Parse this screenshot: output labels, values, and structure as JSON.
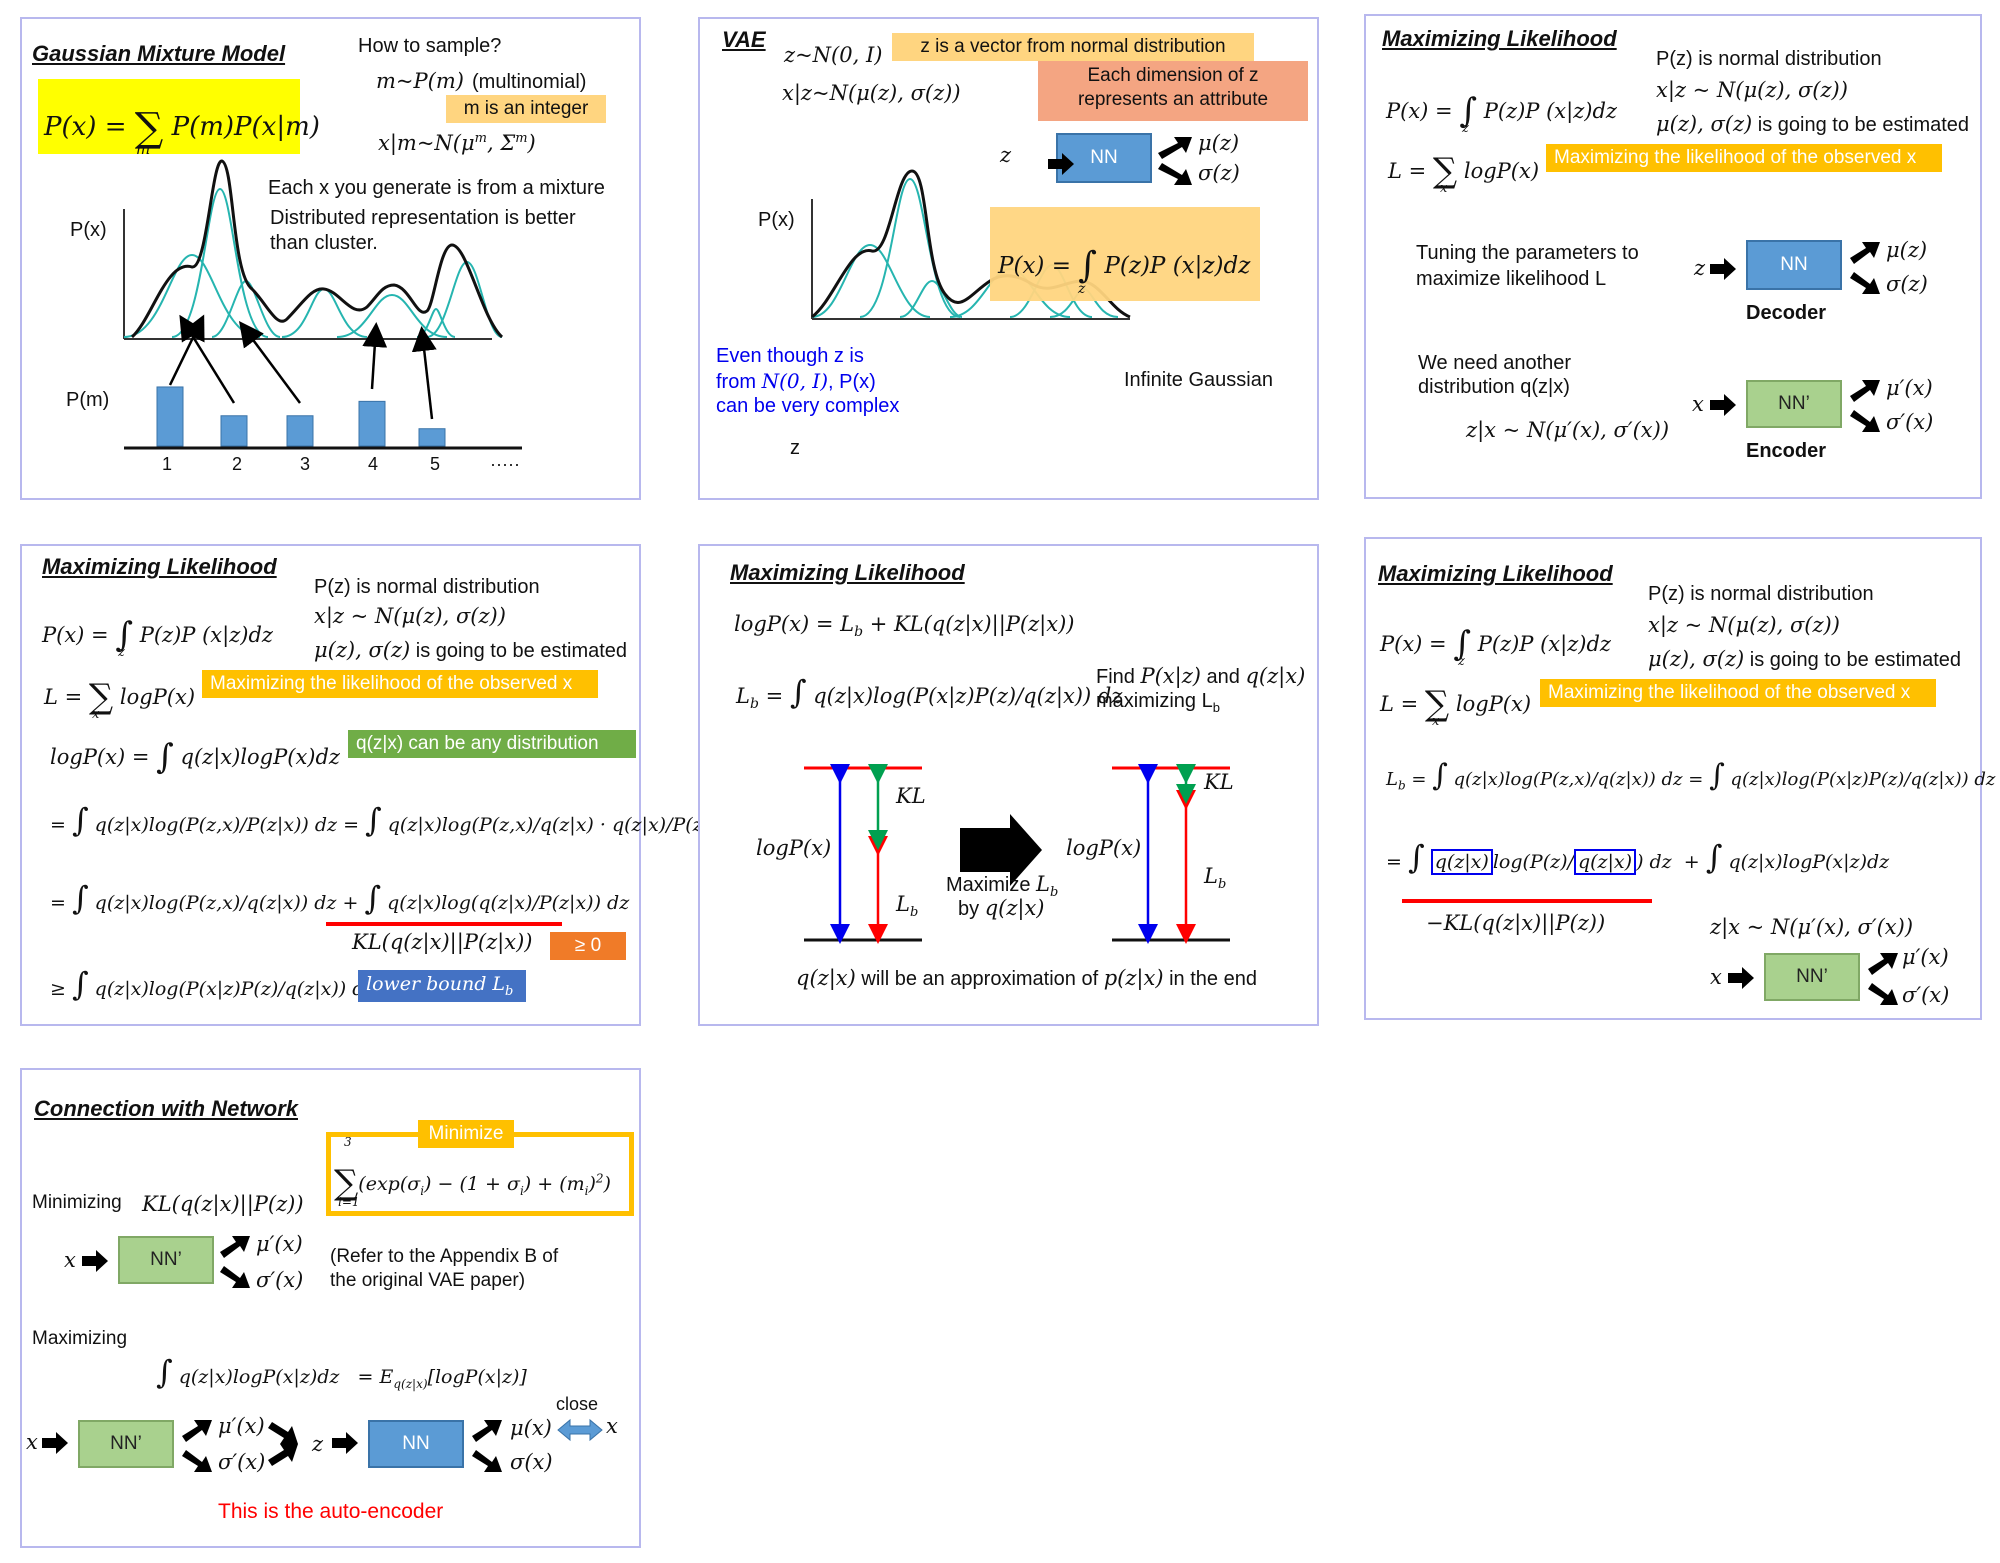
{
  "s1": {
    "title": "Gaussian Mixture Model",
    "how": "How to sample?",
    "m_sample": "m~P(m)",
    "multinomial": "(multinomial)",
    "m_integer": "m is an integer",
    "x_sample": "x|m~N(μ^m, Σ^m)",
    "px_formula": "P(x) = Σ_m P(m)P(x|m)",
    "note1": "Each x you generate is from a mixture",
    "note2": "Distributed representation is better",
    "note3": "than cluster.",
    "px": "P(x)",
    "pm": "P(m)",
    "ticks": [
      "1",
      "2",
      "3",
      "4",
      "5",
      "·····"
    ],
    "pm_values": [
      0.82,
      0.42,
      0.42,
      0.62,
      0.24
    ]
  },
  "s2": {
    "title": "VAE",
    "z_dist": "z~N(0, I)",
    "z_note": "z is a vector from normal distribution",
    "x_dist": "x|z~N(μ(z), σ(z))",
    "dim_note1": "Each dimension of z",
    "dim_note2": "represents an attribute",
    "z": "z",
    "nn": "NN",
    "mu": "μ(z)",
    "sigma": "σ(z)",
    "px": "P(x)",
    "px_formula": "P(x) = ∫_z P(z)P(x|z)dz",
    "even1": "Even though z is",
    "even2": "from N(0, I), P(x)",
    "even3": "can be very complex",
    "infinite": "Infinite Gaussian",
    "zaxis": "z"
  },
  "s3": {
    "title": "Maximizing Likelihood",
    "px_formula": "P(x) = ∫_z P(z)P(x|z)dz",
    "pz_normal": "P(z) is normal distribution",
    "xz": "x|z ~ N(μ(z), σ(z))",
    "est": "μ(z), σ(z) is going to be estimated",
    "L_formula": "L = Σ_x logP(x)",
    "max_note": "Maximizing the likelihood of the observed x",
    "tuning1": "Tuning the parameters to",
    "tuning2": "maximize likelihood L",
    "z": "z",
    "nn": "NN",
    "mu": "μ(z)",
    "sigma": "σ(z)",
    "decoder": "Decoder",
    "need1": "We need another",
    "need2": "distribution q(z|x)",
    "zx": "z|x ~ N(μ′(x), σ′(x))",
    "x": "x",
    "nnp": "NN’",
    "mup": "μ′(x)",
    "sigmap": "σ′(x)",
    "encoder": "Encoder"
  },
  "s4": {
    "title": "Maximizing Likelihood",
    "pz_normal": "P(z) is normal distribution",
    "xz": "x|z ~ N(μ(z), σ(z))",
    "est": "μ(z), σ(z) is going to be estimated",
    "px_formula": "P(x) = ∫_z P(z)P(x|z)dz",
    "L_formula": "L = Σ_x logP(x)",
    "max_note": "Maximizing the likelihood of the observed x",
    "logpx": "logP(x) = ∫_z q(z|x)logP(x)dz",
    "q_any": "q(z|x) can be any distribution",
    "eq1": "= ∫_z q(z|x)log(P(z,x)/P(z|x)) dz = ∫_z q(z|x)log(P(z,x)/q(z|x) · q(z|x)/P(z|x)) dz",
    "eq2": "= ∫_z q(z|x)log(P(z,x)/q(z|x)) dz + ∫_z q(z|x)log(q(z|x)/P(z|x)) dz",
    "kl": "KL(q(z|x)||P(z|x))",
    "ge0": "≥ 0",
    "eq3": "≥ ∫_z q(z|x)log(P(x|z)P(z)/q(z|x)) dz",
    "lower": "lower bound L_b"
  },
  "s5": {
    "title": "Maximizing Likelihood",
    "eq1": "logP(x) = L_b + KL(q(z|x)||P(z|x))",
    "eq2": "L_b = ∫_z q(z|x)log(P(x|z)P(z)/q(z|x)) dz",
    "find1": "Find P(x|z) and q(z|x)",
    "find2": "maximizing L_b",
    "kl": "KL",
    "logpx": "logP(x)",
    "lb": "L_b",
    "maximize1": "Maximize L_b",
    "maximize2": "by q(z|x)",
    "approx": "q(z|x) will be an approximation of p(z|x) in the end"
  },
  "s6": {
    "title": "Maximizing Likelihood",
    "pz_normal": "P(z) is normal distribution",
    "xz": "x|z ~ N(μ(z), σ(z))",
    "est": "μ(z), σ(z) is going to be estimated",
    "px_formula": "P(x) = ∫_z P(z)P(x|z)dz",
    "L_formula": "L = Σ_x logP(x)",
    "max_note": "Maximizing the likelihood of the observed x",
    "lb": "L_b = ∫_z q(z|x)log(P(z,x)/q(z|x)) dz = ∫_z q(z|x)log(P(x|z)P(z)/q(z|x)) dz",
    "eq2": "= ∫_z q(z|x)log(P(z)/q(z|x)) dz + ∫_z q(z|x)logP(x|z)dz",
    "neg_kl": "−KL(q(z|x)||P(z))",
    "zx": "z|x ~ N(μ′(x), σ′(x))",
    "x": "x",
    "nnp": "NN’",
    "mup": "μ′(x)",
    "sigmap": "σ′(x)"
  },
  "s7": {
    "title": "Connection with Network",
    "minimize": "Minimize",
    "sum_formula": "Σ_{i=1}^{3} (exp(σ_i) − (1 + σ_i) + (m_i)^2)",
    "minimizing": "Minimizing",
    "kl": "KL(q(z|x)||P(z))",
    "x": "x",
    "nnp": "NN’",
    "mup": "μ′(x)",
    "sigmap": "σ′(x)",
    "refer1": "(Refer to the Appendix B of",
    "refer2": "the original VAE paper)",
    "maximizing": "Maximizing",
    "expect": "∫_z q(z|x)logP(x|z)dz = E_{q(z|x)}[logP(x|z)]",
    "z": "z",
    "nn": "NN",
    "mu": "μ(x)",
    "sigma": "σ(x)",
    "close": "close",
    "autoenc": "This is the auto-encoder"
  },
  "colors": {
    "yellow": "#ffff00",
    "orange_light": "#ffd580",
    "salmon": "#f4a582",
    "gold": "#ffc000",
    "green": "#70ad47",
    "blue_label": "#4472c4",
    "orange": "#f07b28",
    "nn_blue": "#5b9bd5",
    "nn_green": "#a9d18e",
    "teal": "#26b5b0",
    "red": "#ff0000",
    "blue_text": "#0000ee",
    "kl_green": "#00a050"
  }
}
